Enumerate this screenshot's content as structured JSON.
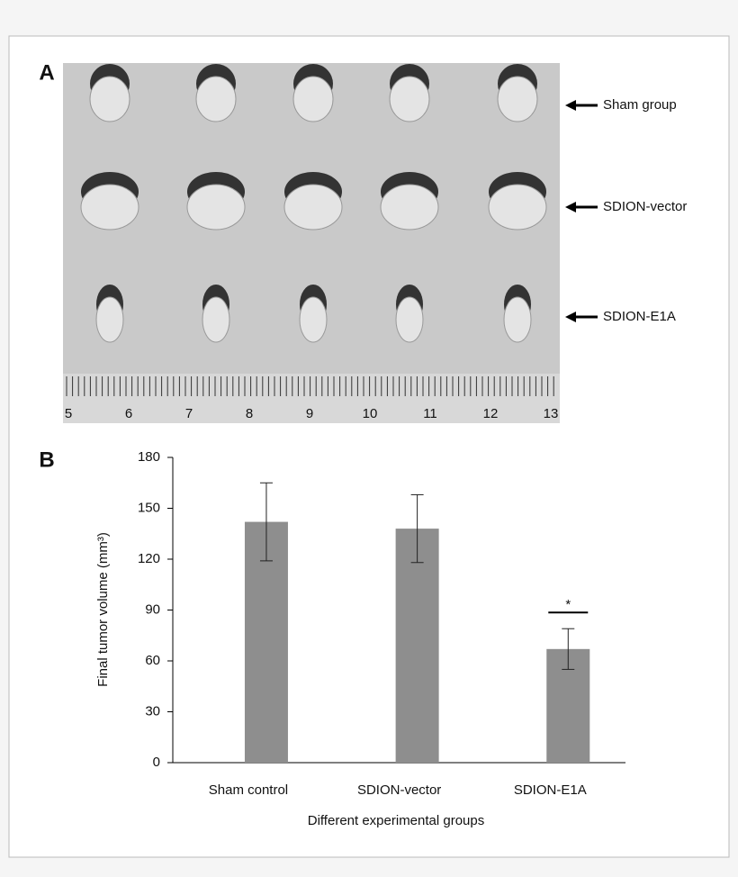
{
  "photo": {
    "panel_label": "A",
    "annotations": [
      "Sham group",
      "SDION-vector",
      "SDION-E1A"
    ],
    "ruler_labels": [
      "5",
      "6",
      "7",
      "8",
      "9",
      "10",
      "11",
      "12",
      "13"
    ]
  },
  "chart_data": {
    "type": "bar",
    "panel_label": "B",
    "categories": [
      "Sham control",
      "SDION-vector",
      "SDION-E1A"
    ],
    "values": [
      142,
      138,
      67
    ],
    "errors": [
      23,
      20,
      12
    ],
    "color": "#8e8e8e",
    "annotation": "*",
    "xlabel": "Different experimental groups",
    "ylabel": "Final tumor volume (mm³)",
    "ylim": [
      0,
      180
    ],
    "yticks": [
      0,
      30,
      60,
      90,
      120,
      150,
      180
    ],
    "grid": false
  }
}
